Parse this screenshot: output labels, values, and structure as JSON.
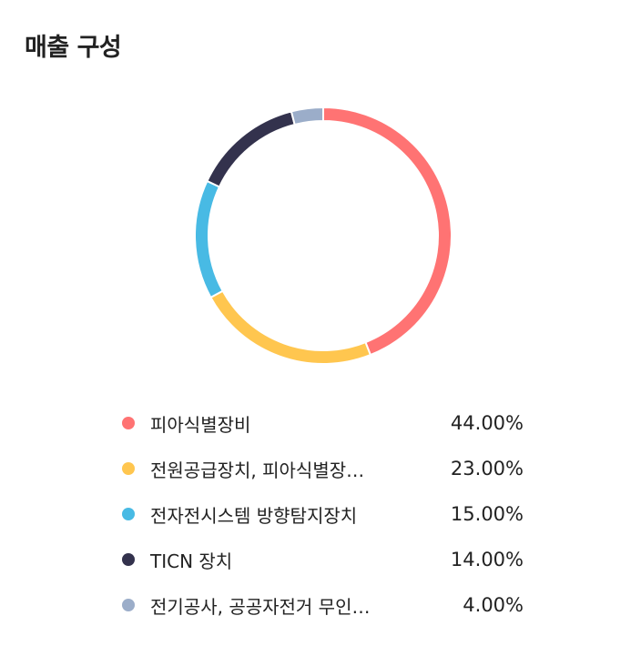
{
  "header": {
    "title": "매출 구성"
  },
  "chart_data": {
    "type": "pie",
    "variant": "donut",
    "start_angle_deg": 0,
    "slices": [
      {
        "label": "피아식별장비",
        "value": 44.0,
        "display": "44.00%",
        "color": "#FF7373"
      },
      {
        "label": "전원공급장치, 피아식별장…",
        "value": 23.0,
        "display": "23.00%",
        "color": "#FFC64F"
      },
      {
        "label": "전자전시스템 방향탐지장치",
        "value": 15.0,
        "display": "15.00%",
        "color": "#48BAE4"
      },
      {
        "label": "TICN 장치",
        "value": 14.0,
        "display": "14.00%",
        "color": "#33324D"
      },
      {
        "label": "전기공사, 공공자전거 무인…",
        "value": 4.0,
        "display": "4.00%",
        "color": "#9BADC9"
      }
    ]
  }
}
